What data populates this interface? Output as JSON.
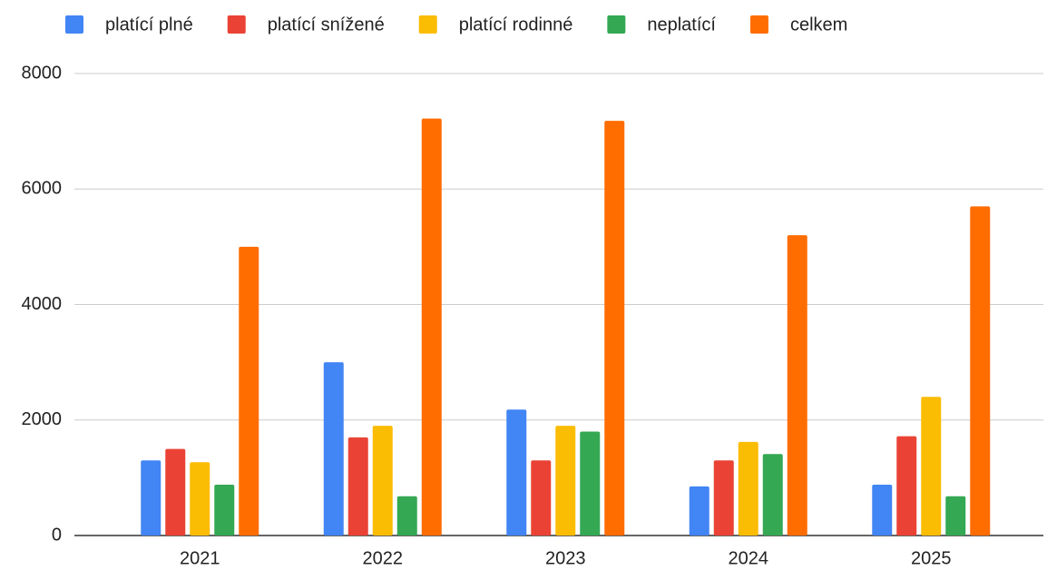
{
  "chart_data": {
    "type": "bar",
    "categories": [
      "2021",
      "2022",
      "2023",
      "2024",
      "2025"
    ],
    "series": [
      {
        "name": "platící plné",
        "color": "#4285f4",
        "values": [
          1300,
          3000,
          2180,
          850,
          880
        ]
      },
      {
        "name": "platící snížené",
        "color": "#ea4335",
        "values": [
          1500,
          1700,
          1300,
          1300,
          1720
        ]
      },
      {
        "name": "platící rodinné",
        "color": "#fbbc04",
        "values": [
          1270,
          1900,
          1900,
          1620,
          2400
        ]
      },
      {
        "name": "neplatící",
        "color": "#34a853",
        "values": [
          880,
          680,
          1800,
          1410,
          680
        ]
      },
      {
        "name": "celkem",
        "color": "#ff6d01",
        "values": [
          5000,
          7220,
          7180,
          5200,
          5700
        ]
      }
    ],
    "ylim": [
      0,
      8000
    ],
    "yticks": [
      0,
      2000,
      4000,
      6000,
      8000
    ],
    "grid": true,
    "legend": "top"
  }
}
